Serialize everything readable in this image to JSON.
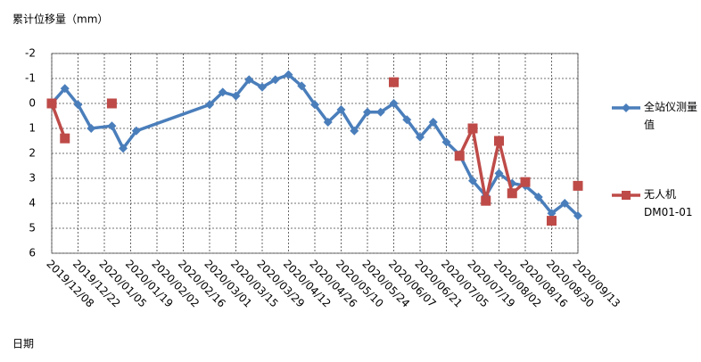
{
  "chart_data": {
    "type": "line",
    "title": "累计位移量（mm）",
    "x_label": "日期",
    "x": [
      "2019/12/08",
      "2019/12/15",
      "2019/12/22",
      "2019/12/29",
      "2020/01/09",
      "2020/01/15",
      "2020/01/22",
      "2020/03/01",
      "2020/03/08",
      "2020/03/15",
      "2020/03/22",
      "2020/03/29",
      "2020/04/05",
      "2020/04/12",
      "2020/04/19",
      "2020/04/26",
      "2020/05/03",
      "2020/05/10",
      "2020/05/17",
      "2020/05/24",
      "2020/05/31",
      "2020/06/07",
      "2020/06/14",
      "2020/06/21",
      "2020/06/28",
      "2020/07/05",
      "2020/07/12",
      "2020/07/19",
      "2020/07/26",
      "2020/08/02",
      "2020/08/09",
      "2020/08/16",
      "2020/08/23",
      "2020/08/30",
      "2020/09/06",
      "2020/09/13"
    ],
    "series": [
      {
        "name": "全站仪测量值",
        "color": "#4a7ebb",
        "marker": "diamond",
        "values": [
          0.0,
          -0.6,
          0.05,
          1.0,
          0.9,
          1.8,
          1.1,
          0.05,
          -0.45,
          -0.3,
          -0.95,
          -0.65,
          -0.95,
          -1.15,
          -0.7,
          0.05,
          0.75,
          0.25,
          1.1,
          0.35,
          0.35,
          0.0,
          0.65,
          1.35,
          0.75,
          1.55,
          2.05,
          3.1,
          3.7,
          2.8,
          3.2,
          3.3,
          3.75,
          4.4,
          4.0,
          4.5
        ]
      },
      {
        "name": "无人机DM01-01",
        "color": "#be4b48",
        "marker": "square",
        "values": [
          0.0,
          1.4,
          null,
          null,
          0.0,
          null,
          null,
          null,
          null,
          null,
          null,
          null,
          null,
          null,
          null,
          null,
          null,
          null,
          null,
          null,
          null,
          -0.85,
          null,
          null,
          null,
          null,
          2.1,
          1.0,
          3.9,
          1.5,
          3.6,
          3.15,
          null,
          4.7,
          null,
          3.3
        ]
      }
    ],
    "xlim": [
      "2019/12/08",
      "2020/09/13"
    ],
    "xticks": [
      "2019/12/08",
      "2019/12/22",
      "2020/01/05",
      "2020/01/19",
      "2020/02/02",
      "2020/02/16",
      "2020/03/01",
      "2020/03/15",
      "2020/03/29",
      "2020/04/12",
      "2020/04/26",
      "2020/05/10",
      "2020/05/24",
      "2020/06/07",
      "2020/06/21",
      "2020/07/05",
      "2020/07/19",
      "2020/08/02",
      "2020/08/16",
      "2020/08/30",
      "2020/09/13"
    ],
    "ylim": [
      -2,
      6
    ],
    "yticks": [
      -2,
      -1,
      0,
      1,
      2,
      3,
      4,
      5,
      6
    ],
    "y_reversed": true,
    "grid": true
  }
}
